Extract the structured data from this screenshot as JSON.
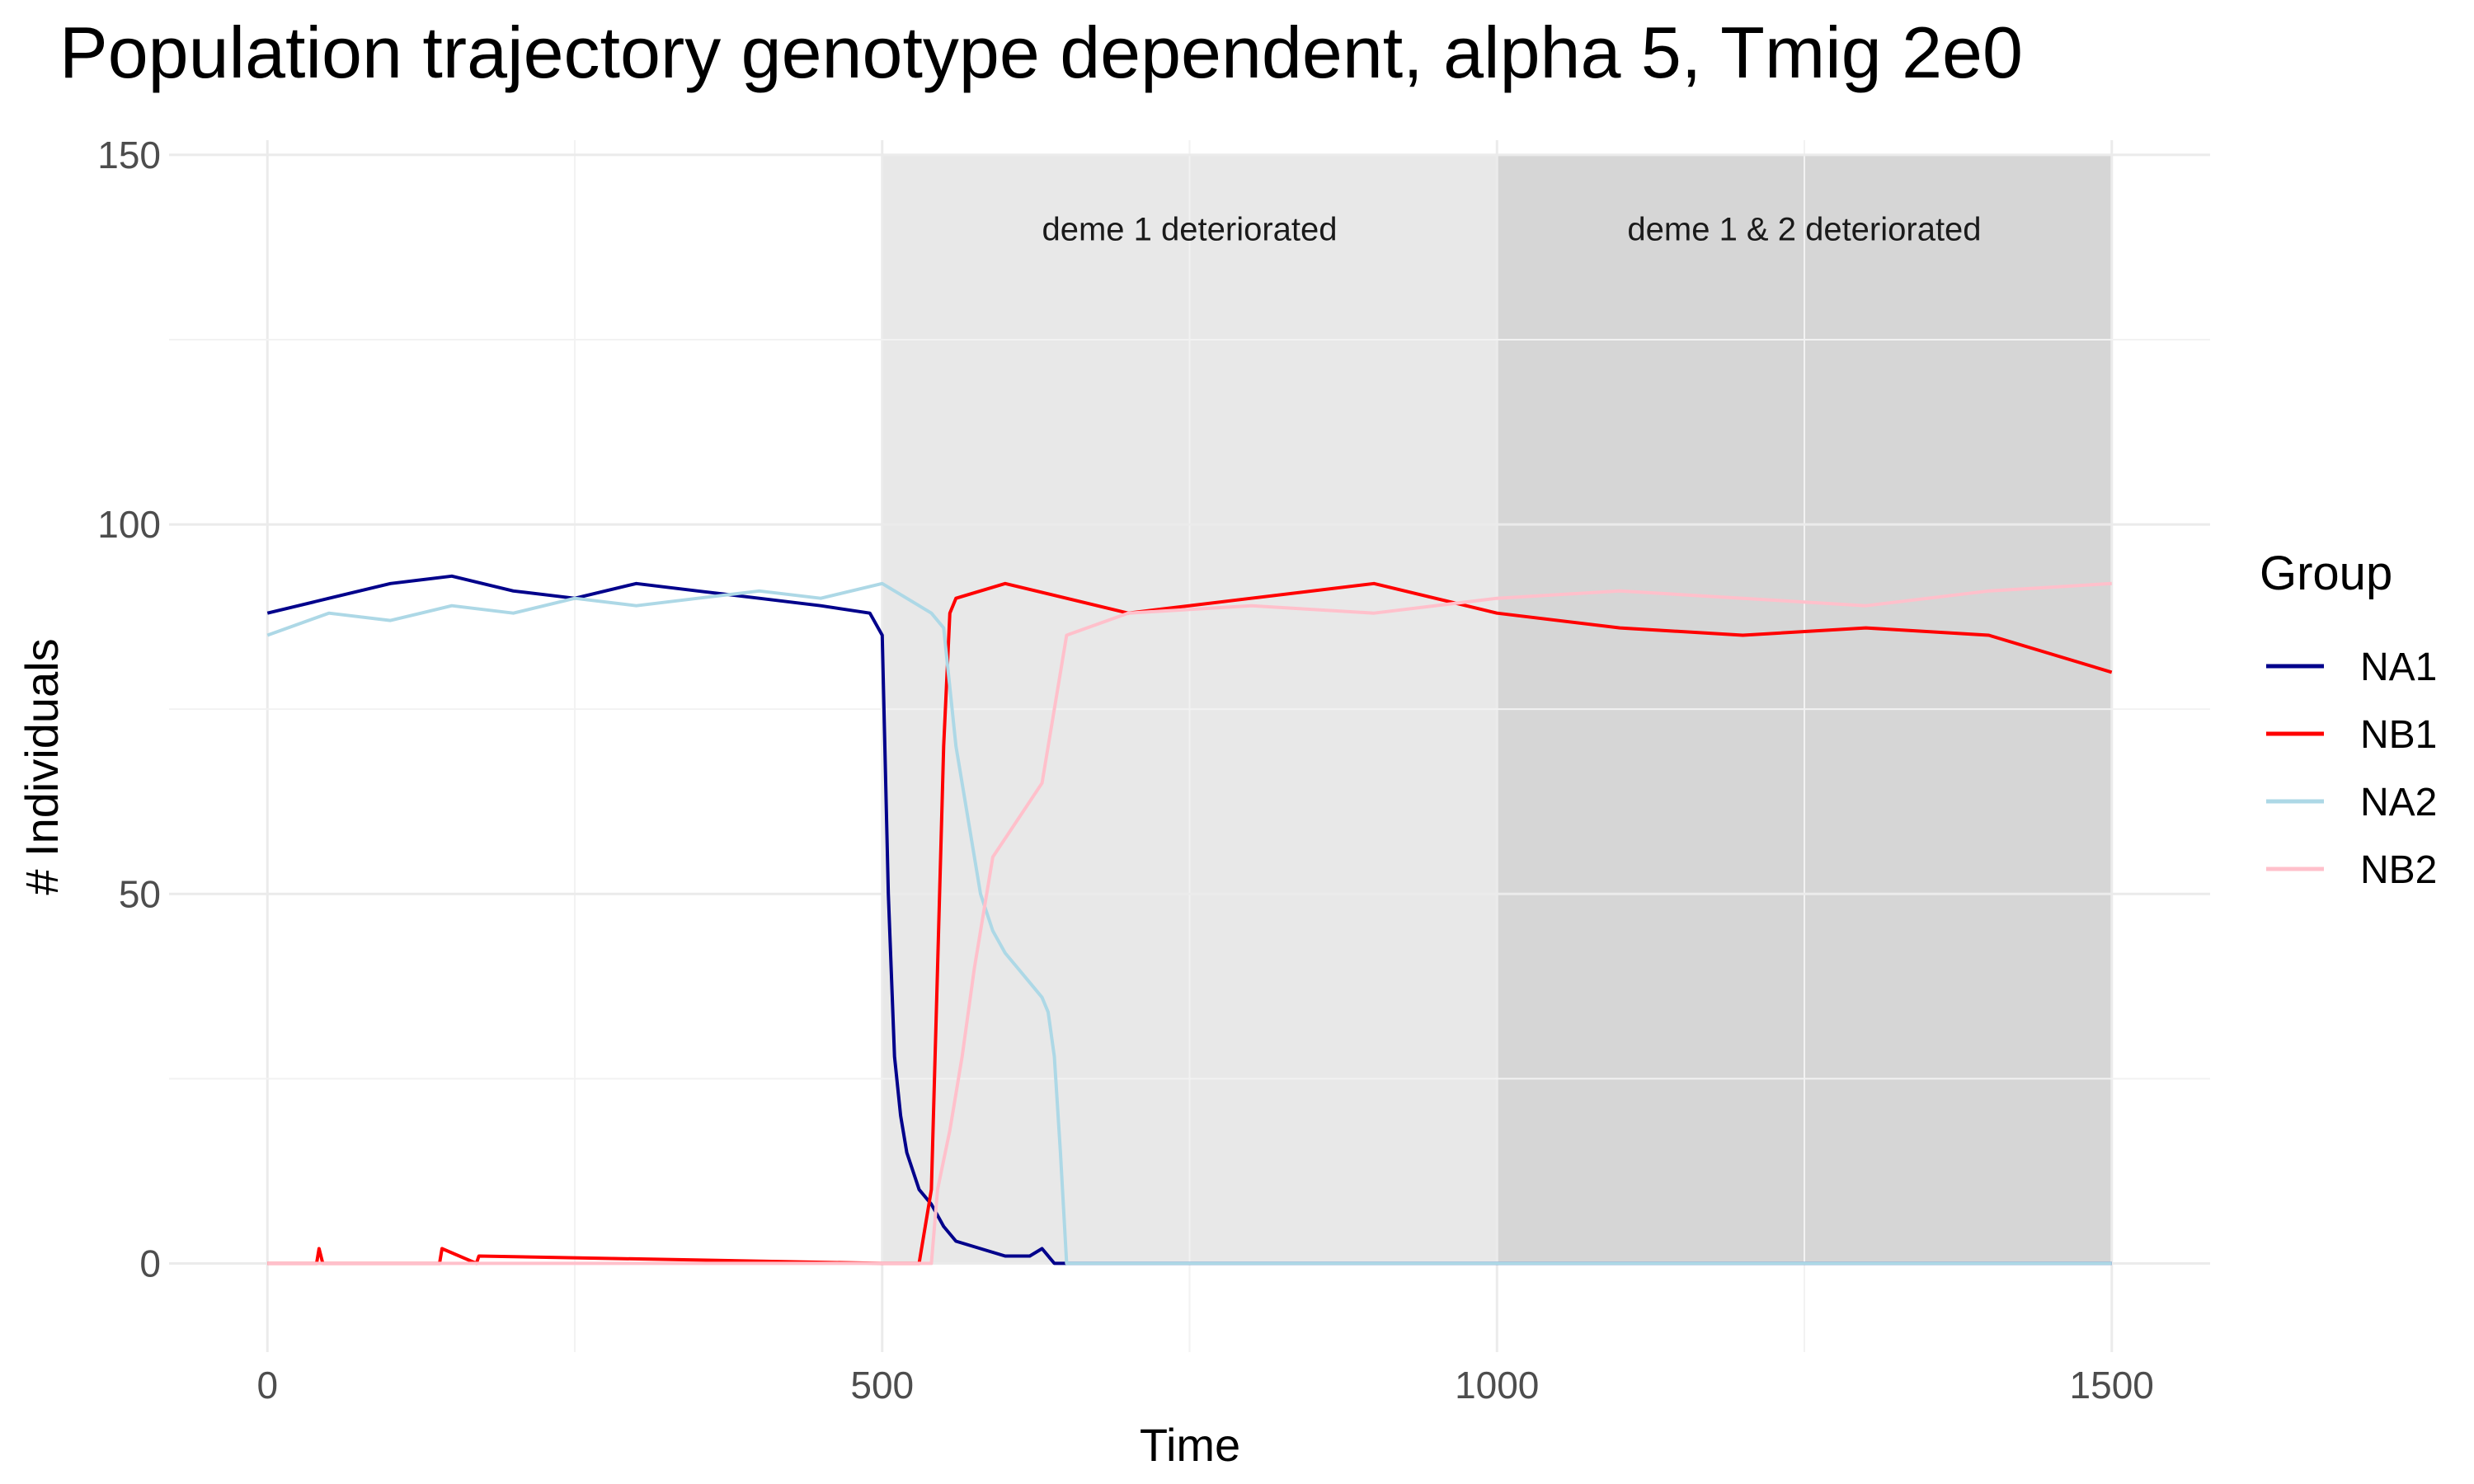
{
  "chart_data": {
    "type": "line",
    "title": "Population trajectory genotype dependent, alpha 5, Tmig 2e0",
    "xlabel": "Time",
    "ylabel": "# Individuals",
    "xlim": [
      -80,
      1580
    ],
    "ylim": [
      -12,
      152
    ],
    "x_ticks": [
      0,
      500,
      1000,
      1500
    ],
    "y_ticks": [
      0,
      50,
      100,
      150
    ],
    "grid": true,
    "legend": {
      "title": "Group",
      "position": "right"
    },
    "colors": {
      "NA1": "#00008b",
      "NB1": "#ff0000",
      "NA2": "#add8e6",
      "NB2": "#ffc0cb"
    },
    "annotations": [
      {
        "label": "deme 1 deteriorated",
        "x_start": 500,
        "x_end": 1000,
        "fill": "#e8e8e8"
      },
      {
        "label": "deme 1 & 2 deteriorated",
        "x_start": 1000,
        "x_end": 1500,
        "fill": "#d6d6d6"
      }
    ],
    "series": [
      {
        "name": "NA1",
        "x": [
          0,
          50,
          100,
          150,
          200,
          250,
          300,
          350,
          400,
          450,
          490,
          500,
          505,
          510,
          515,
          520,
          530,
          540,
          550,
          560,
          580,
          600,
          620,
          630,
          640,
          1500
        ],
        "values": [
          88,
          90,
          92,
          93,
          91,
          90,
          92,
          91,
          90,
          89,
          88,
          85,
          50,
          28,
          20,
          15,
          10,
          8,
          5,
          3,
          2,
          1,
          1,
          2,
          0,
          0
        ]
      },
      {
        "name": "NB1",
        "x": [
          0,
          40,
          42,
          45,
          140,
          142,
          170,
          172,
          500,
          530,
          540,
          545,
          550,
          555,
          560,
          600,
          700,
          800,
          900,
          1000,
          1100,
          1200,
          1300,
          1400,
          1500
        ],
        "values": [
          0,
          0,
          2,
          0,
          0,
          2,
          0,
          1,
          0,
          0,
          10,
          40,
          70,
          88,
          90,
          92,
          88,
          90,
          92,
          88,
          86,
          85,
          86,
          85,
          80
        ]
      },
      {
        "name": "NA2",
        "x": [
          0,
          50,
          100,
          150,
          200,
          250,
          300,
          350,
          400,
          450,
          500,
          520,
          540,
          550,
          560,
          570,
          580,
          590,
          600,
          610,
          620,
          630,
          635,
          640,
          645,
          650,
          1500
        ],
        "values": [
          85,
          88,
          87,
          89,
          88,
          90,
          89,
          90,
          91,
          90,
          92,
          90,
          88,
          86,
          70,
          60,
          50,
          45,
          42,
          40,
          38,
          36,
          34,
          28,
          15,
          0,
          0
        ]
      },
      {
        "name": "NB2",
        "x": [
          0,
          500,
          540,
          545,
          555,
          565,
          575,
          590,
          610,
          630,
          640,
          650,
          700,
          800,
          900,
          1000,
          1100,
          1200,
          1300,
          1400,
          1500
        ],
        "values": [
          0,
          0,
          0,
          10,
          18,
          28,
          40,
          55,
          60,
          65,
          75,
          85,
          88,
          89,
          88,
          90,
          91,
          90,
          89,
          91,
          92
        ]
      }
    ]
  }
}
